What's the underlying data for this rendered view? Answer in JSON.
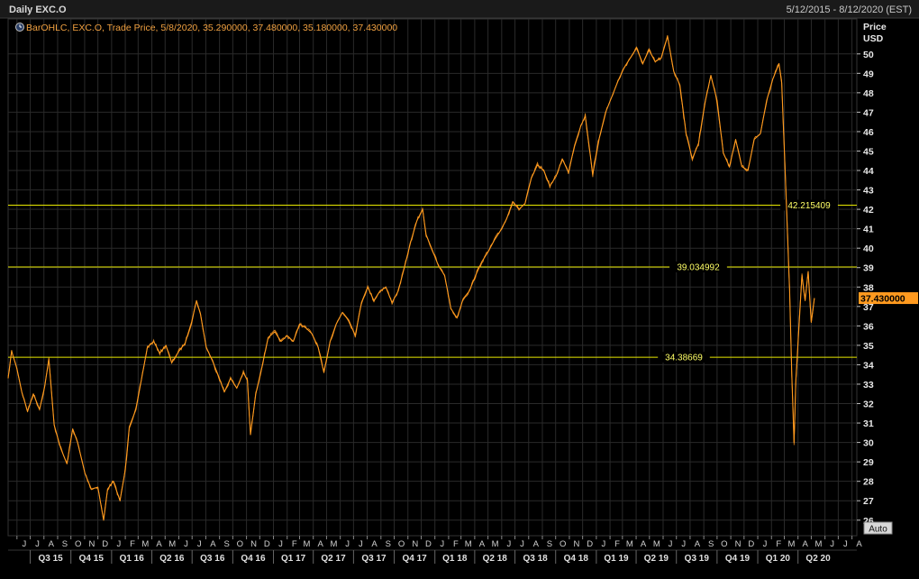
{
  "header": {
    "title": "Daily EXC.O",
    "date_range": "5/12/2015 - 8/12/2020 (EST)"
  },
  "legend": {
    "icon": "clock-icon",
    "text": "BarOHLC, EXC.O, Trade Price,  5/8/2020, 35.290000, 37.480000, 35.180000, 37.430000"
  },
  "axis": {
    "y_title_1": "Price",
    "y_title_2": "USD",
    "auto_button": "Auto"
  },
  "colors": {
    "background": "#000000",
    "price_line": "#ff9a1f",
    "horizontal_lines": "#e8e800",
    "gridlines": "#2a2a2a",
    "last_price_badge": "#ff9a1f"
  },
  "chart_data": {
    "type": "line",
    "title": "Daily EXC.O",
    "ylabel": "Price USD",
    "ylim": [
      25.2,
      51.8
    ],
    "xlim": [
      "2015-05-12",
      "2020-08-12"
    ],
    "grid": true,
    "yticks": [
      26,
      27,
      28,
      29,
      30,
      31,
      32,
      33,
      34,
      35,
      36,
      37,
      38,
      39,
      40,
      41,
      42,
      43,
      44,
      45,
      46,
      47,
      48,
      49,
      50
    ],
    "last_price": {
      "value": 37.43,
      "label": "37.430000"
    },
    "horizontal_lines": [
      {
        "value": 42.215409,
        "label": "42.215409"
      },
      {
        "value": 39.034992,
        "label": "39.034992"
      },
      {
        "value": 34.38669,
        "label": "34.38669"
      }
    ],
    "month_labels": [
      {
        "date": "2015-06-01",
        "label": "J"
      },
      {
        "date": "2015-07-01",
        "label": "J"
      },
      {
        "date": "2015-08-01",
        "label": "A"
      },
      {
        "date": "2015-09-01",
        "label": "S"
      },
      {
        "date": "2015-10-01",
        "label": "O"
      },
      {
        "date": "2015-11-01",
        "label": "N"
      },
      {
        "date": "2015-12-01",
        "label": "D"
      },
      {
        "date": "2016-01-01",
        "label": "J"
      },
      {
        "date": "2016-02-01",
        "label": "F"
      },
      {
        "date": "2016-03-01",
        "label": "M"
      },
      {
        "date": "2016-04-01",
        "label": "A"
      },
      {
        "date": "2016-05-01",
        "label": "M"
      },
      {
        "date": "2016-06-01",
        "label": "J"
      },
      {
        "date": "2016-07-01",
        "label": "J"
      },
      {
        "date": "2016-08-01",
        "label": "A"
      },
      {
        "date": "2016-09-01",
        "label": "S"
      },
      {
        "date": "2016-10-01",
        "label": "O"
      },
      {
        "date": "2016-11-01",
        "label": "N"
      },
      {
        "date": "2016-12-01",
        "label": "D"
      },
      {
        "date": "2017-01-01",
        "label": "J"
      },
      {
        "date": "2017-02-01",
        "label": "F"
      },
      {
        "date": "2017-03-01",
        "label": "M"
      },
      {
        "date": "2017-04-01",
        "label": "A"
      },
      {
        "date": "2017-05-01",
        "label": "M"
      },
      {
        "date": "2017-06-01",
        "label": "J"
      },
      {
        "date": "2017-07-01",
        "label": "J"
      },
      {
        "date": "2017-08-01",
        "label": "A"
      },
      {
        "date": "2017-09-01",
        "label": "S"
      },
      {
        "date": "2017-10-01",
        "label": "O"
      },
      {
        "date": "2017-11-01",
        "label": "N"
      },
      {
        "date": "2017-12-01",
        "label": "D"
      },
      {
        "date": "2018-01-01",
        "label": "J"
      },
      {
        "date": "2018-02-01",
        "label": "F"
      },
      {
        "date": "2018-03-01",
        "label": "M"
      },
      {
        "date": "2018-04-01",
        "label": "A"
      },
      {
        "date": "2018-05-01",
        "label": "M"
      },
      {
        "date": "2018-06-01",
        "label": "J"
      },
      {
        "date": "2018-07-01",
        "label": "J"
      },
      {
        "date": "2018-08-01",
        "label": "A"
      },
      {
        "date": "2018-09-01",
        "label": "S"
      },
      {
        "date": "2018-10-01",
        "label": "O"
      },
      {
        "date": "2018-11-01",
        "label": "N"
      },
      {
        "date": "2018-12-01",
        "label": "D"
      },
      {
        "date": "2019-01-01",
        "label": "J"
      },
      {
        "date": "2019-02-01",
        "label": "F"
      },
      {
        "date": "2019-03-01",
        "label": "M"
      },
      {
        "date": "2019-04-01",
        "label": "A"
      },
      {
        "date": "2019-05-01",
        "label": "M"
      },
      {
        "date": "2019-06-01",
        "label": "J"
      },
      {
        "date": "2019-07-01",
        "label": "J"
      },
      {
        "date": "2019-08-01",
        "label": "A"
      },
      {
        "date": "2019-09-01",
        "label": "S"
      },
      {
        "date": "2019-10-01",
        "label": "O"
      },
      {
        "date": "2019-11-01",
        "label": "N"
      },
      {
        "date": "2019-12-01",
        "label": "D"
      },
      {
        "date": "2020-01-01",
        "label": "J"
      },
      {
        "date": "2020-02-01",
        "label": "F"
      },
      {
        "date": "2020-03-01",
        "label": "M"
      },
      {
        "date": "2020-04-01",
        "label": "A"
      },
      {
        "date": "2020-05-01",
        "label": "M"
      },
      {
        "date": "2020-06-01",
        "label": "J"
      },
      {
        "date": "2020-07-01",
        "label": "J"
      },
      {
        "date": "2020-08-01",
        "label": "A"
      }
    ],
    "quarter_labels": [
      {
        "start": "2015-07-01",
        "label": "Q3 15"
      },
      {
        "start": "2015-10-01",
        "label": "Q4 15"
      },
      {
        "start": "2016-01-01",
        "label": "Q1 16"
      },
      {
        "start": "2016-04-01",
        "label": "Q2 16"
      },
      {
        "start": "2016-07-01",
        "label": "Q3 16"
      },
      {
        "start": "2016-10-01",
        "label": "Q4 16"
      },
      {
        "start": "2017-01-01",
        "label": "Q1 17"
      },
      {
        "start": "2017-04-01",
        "label": "Q2 17"
      },
      {
        "start": "2017-07-01",
        "label": "Q3 17"
      },
      {
        "start": "2017-10-01",
        "label": "Q4 17"
      },
      {
        "start": "2018-01-01",
        "label": "Q1 18"
      },
      {
        "start": "2018-04-01",
        "label": "Q2 18"
      },
      {
        "start": "2018-07-01",
        "label": "Q3 18"
      },
      {
        "start": "2018-10-01",
        "label": "Q4 18"
      },
      {
        "start": "2019-01-01",
        "label": "Q1 19"
      },
      {
        "start": "2019-04-01",
        "label": "Q2 19"
      },
      {
        "start": "2019-07-01",
        "label": "Q3 19"
      },
      {
        "start": "2019-10-01",
        "label": "Q4 19"
      },
      {
        "start": "2020-01-01",
        "label": "Q1 20"
      },
      {
        "start": "2020-04-01",
        "label": "Q2 20"
      }
    ],
    "series": [
      {
        "name": "EXC.O",
        "points": [
          {
            "x": "2015-05-12",
            "y": 33.3
          },
          {
            "x": "2015-05-20",
            "y": 34.7
          },
          {
            "x": "2015-06-01",
            "y": 33.8
          },
          {
            "x": "2015-06-12",
            "y": 32.6
          },
          {
            "x": "2015-06-25",
            "y": 31.6
          },
          {
            "x": "2015-07-08",
            "y": 32.5
          },
          {
            "x": "2015-07-22",
            "y": 31.7
          },
          {
            "x": "2015-08-03",
            "y": 32.9
          },
          {
            "x": "2015-08-12",
            "y": 34.3
          },
          {
            "x": "2015-08-24",
            "y": 30.9
          },
          {
            "x": "2015-09-08",
            "y": 29.7
          },
          {
            "x": "2015-09-22",
            "y": 28.9
          },
          {
            "x": "2015-10-05",
            "y": 30.7
          },
          {
            "x": "2015-10-16",
            "y": 30.0
          },
          {
            "x": "2015-11-02",
            "y": 28.4
          },
          {
            "x": "2015-11-16",
            "y": 27.6
          },
          {
            "x": "2015-12-01",
            "y": 27.7
          },
          {
            "x": "2015-12-14",
            "y": 26.0
          },
          {
            "x": "2015-12-23",
            "y": 27.6
          },
          {
            "x": "2016-01-05",
            "y": 28.0
          },
          {
            "x": "2016-01-20",
            "y": 27.0
          },
          {
            "x": "2016-02-01",
            "y": 28.6
          },
          {
            "x": "2016-02-10",
            "y": 30.8
          },
          {
            "x": "2016-02-25",
            "y": 31.7
          },
          {
            "x": "2016-03-08",
            "y": 33.2
          },
          {
            "x": "2016-03-22",
            "y": 34.9
          },
          {
            "x": "2016-04-05",
            "y": 35.2
          },
          {
            "x": "2016-04-19",
            "y": 34.6
          },
          {
            "x": "2016-05-03",
            "y": 35.0
          },
          {
            "x": "2016-05-16",
            "y": 34.1
          },
          {
            "x": "2016-06-01",
            "y": 34.7
          },
          {
            "x": "2016-06-15",
            "y": 35.1
          },
          {
            "x": "2016-06-30",
            "y": 36.2
          },
          {
            "x": "2016-07-11",
            "y": 37.3
          },
          {
            "x": "2016-07-20",
            "y": 36.6
          },
          {
            "x": "2016-08-02",
            "y": 34.9
          },
          {
            "x": "2016-08-16",
            "y": 34.2
          },
          {
            "x": "2016-08-30",
            "y": 33.4
          },
          {
            "x": "2016-09-12",
            "y": 32.6
          },
          {
            "x": "2016-09-26",
            "y": 33.3
          },
          {
            "x": "2016-10-10",
            "y": 32.8
          },
          {
            "x": "2016-10-25",
            "y": 33.6
          },
          {
            "x": "2016-11-03",
            "y": 33.2
          },
          {
            "x": "2016-11-10",
            "y": 30.4
          },
          {
            "x": "2016-11-22",
            "y": 32.5
          },
          {
            "x": "2016-12-06",
            "y": 33.9
          },
          {
            "x": "2016-12-20",
            "y": 35.4
          },
          {
            "x": "2017-01-04",
            "y": 35.7
          },
          {
            "x": "2017-01-18",
            "y": 35.2
          },
          {
            "x": "2017-02-01",
            "y": 35.5
          },
          {
            "x": "2017-02-15",
            "y": 35.2
          },
          {
            "x": "2017-03-01",
            "y": 36.1
          },
          {
            "x": "2017-03-15",
            "y": 35.9
          },
          {
            "x": "2017-03-29",
            "y": 35.6
          },
          {
            "x": "2017-04-12",
            "y": 34.9
          },
          {
            "x": "2017-04-25",
            "y": 33.6
          },
          {
            "x": "2017-05-09",
            "y": 35.2
          },
          {
            "x": "2017-05-23",
            "y": 36.1
          },
          {
            "x": "2017-06-06",
            "y": 36.7
          },
          {
            "x": "2017-06-20",
            "y": 36.3
          },
          {
            "x": "2017-07-05",
            "y": 35.5
          },
          {
            "x": "2017-07-19",
            "y": 37.2
          },
          {
            "x": "2017-08-02",
            "y": 38.0
          },
          {
            "x": "2017-08-16",
            "y": 37.3
          },
          {
            "x": "2017-08-30",
            "y": 37.8
          },
          {
            "x": "2017-09-12",
            "y": 38.0
          },
          {
            "x": "2017-09-26",
            "y": 37.2
          },
          {
            "x": "2017-10-10",
            "y": 37.8
          },
          {
            "x": "2017-10-24",
            "y": 39.0
          },
          {
            "x": "2017-11-07",
            "y": 40.3
          },
          {
            "x": "2017-11-21",
            "y": 41.4
          },
          {
            "x": "2017-12-04",
            "y": 42.0
          },
          {
            "x": "2017-12-12",
            "y": 40.7
          },
          {
            "x": "2017-12-26",
            "y": 39.9
          },
          {
            "x": "2018-01-09",
            "y": 39.1
          },
          {
            "x": "2018-01-23",
            "y": 38.6
          },
          {
            "x": "2018-02-06",
            "y": 36.9
          },
          {
            "x": "2018-02-20",
            "y": 36.4
          },
          {
            "x": "2018-03-06",
            "y": 37.4
          },
          {
            "x": "2018-03-20",
            "y": 37.8
          },
          {
            "x": "2018-04-03",
            "y": 38.6
          },
          {
            "x": "2018-04-17",
            "y": 39.3
          },
          {
            "x": "2018-05-01",
            "y": 39.8
          },
          {
            "x": "2018-05-15",
            "y": 40.4
          },
          {
            "x": "2018-05-29",
            "y": 40.9
          },
          {
            "x": "2018-06-12",
            "y": 41.5
          },
          {
            "x": "2018-06-26",
            "y": 42.4
          },
          {
            "x": "2018-07-10",
            "y": 42.0
          },
          {
            "x": "2018-07-24",
            "y": 42.3
          },
          {
            "x": "2018-08-07",
            "y": 43.6
          },
          {
            "x": "2018-08-21",
            "y": 44.3
          },
          {
            "x": "2018-09-04",
            "y": 44.0
          },
          {
            "x": "2018-09-18",
            "y": 43.2
          },
          {
            "x": "2018-10-02",
            "y": 43.7
          },
          {
            "x": "2018-10-16",
            "y": 44.6
          },
          {
            "x": "2018-10-30",
            "y": 43.9
          },
          {
            "x": "2018-11-13",
            "y": 45.3
          },
          {
            "x": "2018-11-27",
            "y": 46.3
          },
          {
            "x": "2018-12-07",
            "y": 46.8
          },
          {
            "x": "2018-12-24",
            "y": 43.8
          },
          {
            "x": "2019-01-08",
            "y": 45.7
          },
          {
            "x": "2019-01-22",
            "y": 47.0
          },
          {
            "x": "2019-02-05",
            "y": 47.8
          },
          {
            "x": "2019-02-19",
            "y": 48.6
          },
          {
            "x": "2019-03-05",
            "y": 49.3
          },
          {
            "x": "2019-03-19",
            "y": 49.8
          },
          {
            "x": "2019-04-02",
            "y": 50.3
          },
          {
            "x": "2019-04-16",
            "y": 49.5
          },
          {
            "x": "2019-04-30",
            "y": 50.2
          },
          {
            "x": "2019-05-14",
            "y": 49.6
          },
          {
            "x": "2019-05-28",
            "y": 49.8
          },
          {
            "x": "2019-06-11",
            "y": 50.9
          },
          {
            "x": "2019-06-25",
            "y": 49.1
          },
          {
            "x": "2019-07-09",
            "y": 48.4
          },
          {
            "x": "2019-07-23",
            "y": 45.9
          },
          {
            "x": "2019-08-06",
            "y": 44.6
          },
          {
            "x": "2019-08-20",
            "y": 45.4
          },
          {
            "x": "2019-09-03",
            "y": 47.4
          },
          {
            "x": "2019-09-17",
            "y": 48.9
          },
          {
            "x": "2019-10-01",
            "y": 47.6
          },
          {
            "x": "2019-10-15",
            "y": 44.9
          },
          {
            "x": "2019-10-29",
            "y": 44.2
          },
          {
            "x": "2019-11-12",
            "y": 45.6
          },
          {
            "x": "2019-11-26",
            "y": 44.2
          },
          {
            "x": "2019-12-10",
            "y": 44.0
          },
          {
            "x": "2019-12-24",
            "y": 45.6
          },
          {
            "x": "2020-01-07",
            "y": 45.9
          },
          {
            "x": "2020-01-21",
            "y": 47.6
          },
          {
            "x": "2020-02-04",
            "y": 48.7
          },
          {
            "x": "2020-02-18",
            "y": 49.5
          },
          {
            "x": "2020-02-24",
            "y": 48.5
          },
          {
            "x": "2020-03-02",
            "y": 44.5
          },
          {
            "x": "2020-03-09",
            "y": 40.3
          },
          {
            "x": "2020-03-13",
            "y": 37.8
          },
          {
            "x": "2020-03-18",
            "y": 33.5
          },
          {
            "x": "2020-03-23",
            "y": 30.0
          },
          {
            "x": "2020-03-27",
            "y": 33.2
          },
          {
            "x": "2020-04-03",
            "y": 35.9
          },
          {
            "x": "2020-04-10",
            "y": 38.6
          },
          {
            "x": "2020-04-17",
            "y": 37.3
          },
          {
            "x": "2020-04-24",
            "y": 38.8
          },
          {
            "x": "2020-05-01",
            "y": 36.2
          },
          {
            "x": "2020-05-08",
            "y": 37.43
          }
        ]
      }
    ]
  }
}
